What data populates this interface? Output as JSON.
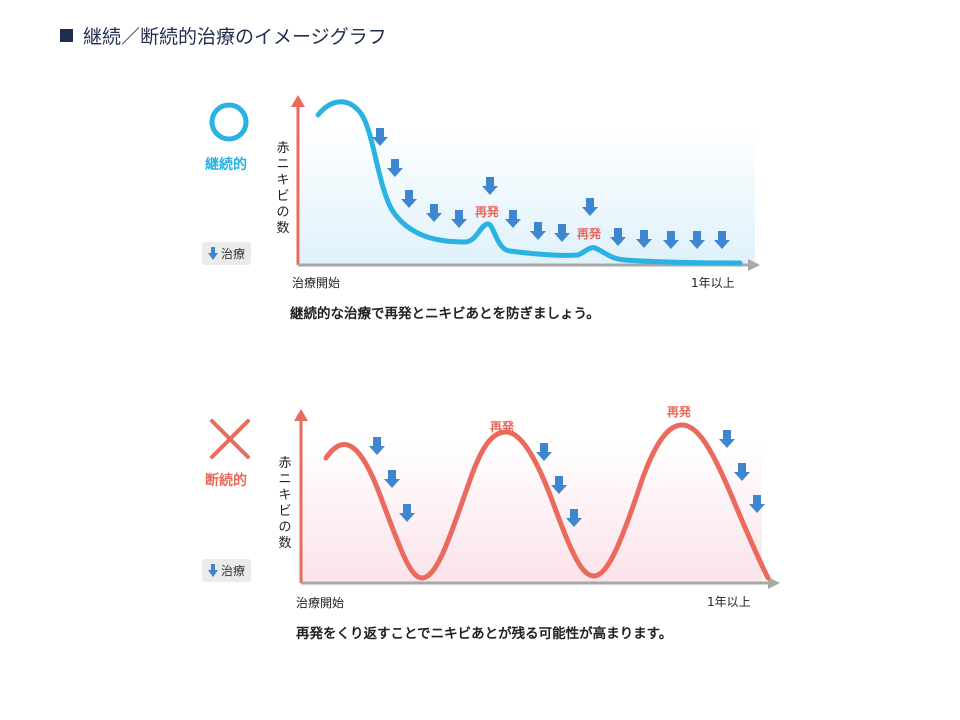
{
  "title": "継続／断続的治療のイメージグラフ",
  "colors": {
    "continuous": "#29b2e2",
    "intermittent": "#ea6a5e",
    "arrow": "#3e86d0",
    "axis": "#a8a8a8",
    "yaxis_arrow": "#ea6a5e",
    "title": "#1f2d4f"
  },
  "icons": {
    "good": "circle-icon",
    "bad": "cross-icon",
    "treatment": "down-arrow-icon"
  },
  "panels": [
    {
      "mark_label": "継続的",
      "legend_label": "治療",
      "y_label": "赤ニキビの数",
      "x_start_label": "治療開始",
      "x_end_label": "1年以上",
      "relapse_labels": [
        "再発",
        "再発"
      ],
      "caption": "継続的な治療で再発とニキビあとを防ぎましょう。"
    },
    {
      "mark_label": "断続的",
      "legend_label": "治療",
      "y_label": "赤ニキビの数",
      "x_start_label": "治療開始",
      "x_end_label": "1年以上",
      "relapse_labels": [
        "再発",
        "再発"
      ],
      "caption": "再発をくり返すことでニキビあとが残る可能性が高まります。"
    }
  ]
}
